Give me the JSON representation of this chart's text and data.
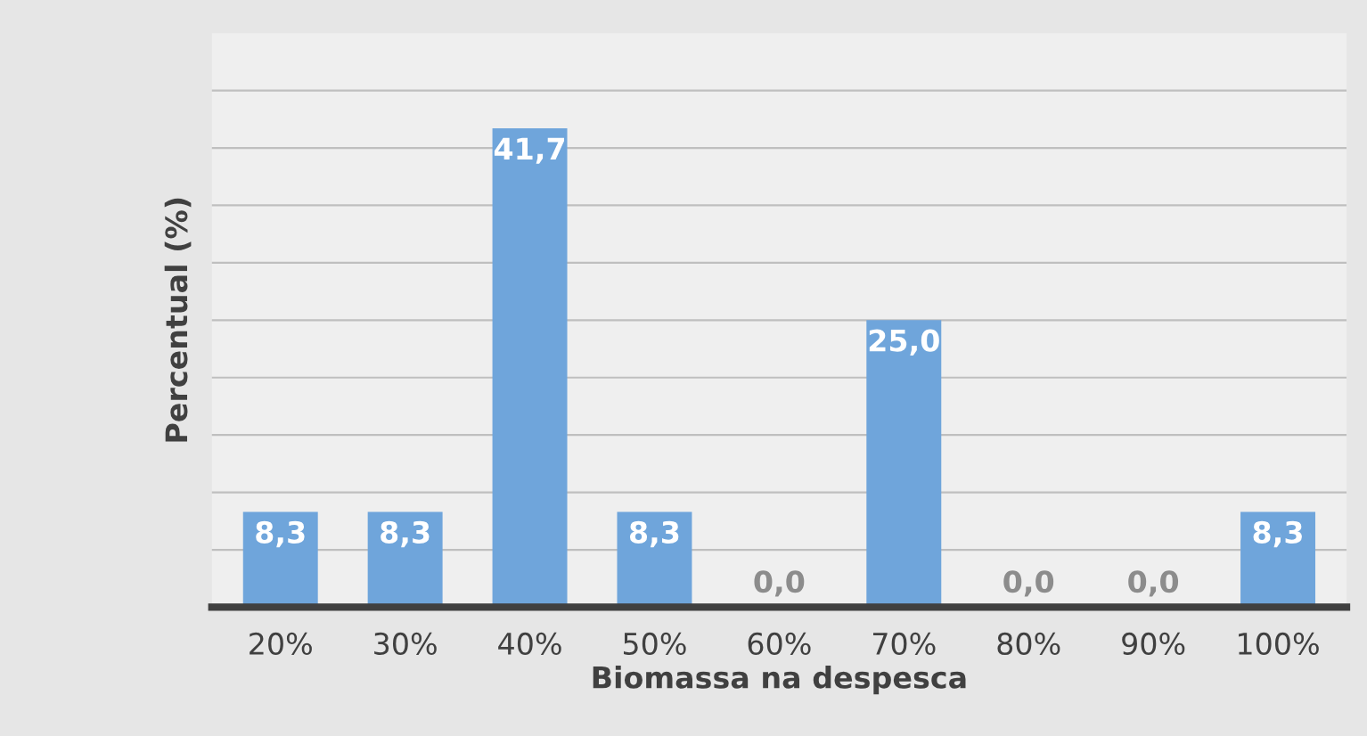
{
  "chart_data": {
    "type": "bar",
    "xlabel": "Biomassa na despesca",
    "ylabel": "Percentual (%)",
    "categories": [
      "20%",
      "30%",
      "40%",
      "50%",
      "60%",
      "70%",
      "80%",
      "90%",
      "100%"
    ],
    "values": [
      8.3,
      8.3,
      41.7,
      8.3,
      0.0,
      25.0,
      0.0,
      0.0,
      8.3
    ],
    "value_labels": [
      "8,3",
      "8,3",
      "41,7",
      "8,3",
      "0,0",
      "25,0",
      "0,0",
      "0,0",
      "8,3"
    ],
    "color": "#6fa5db",
    "ylim": [
      0,
      50
    ],
    "yticks": [
      {
        "value": 0,
        "label": null
      },
      {
        "value": 5,
        "label": null
      },
      {
        "value": 10,
        "label": null
      },
      {
        "value": 15,
        "label": null
      },
      {
        "value": 20,
        "label": null
      },
      {
        "value": 25,
        "label": null
      },
      {
        "value": 30,
        "label": null
      },
      {
        "value": 35,
        "label": null
      },
      {
        "value": 40,
        "label": null
      },
      {
        "value": 45,
        "label": null
      }
    ],
    "grid": "y",
    "legend": false
  }
}
